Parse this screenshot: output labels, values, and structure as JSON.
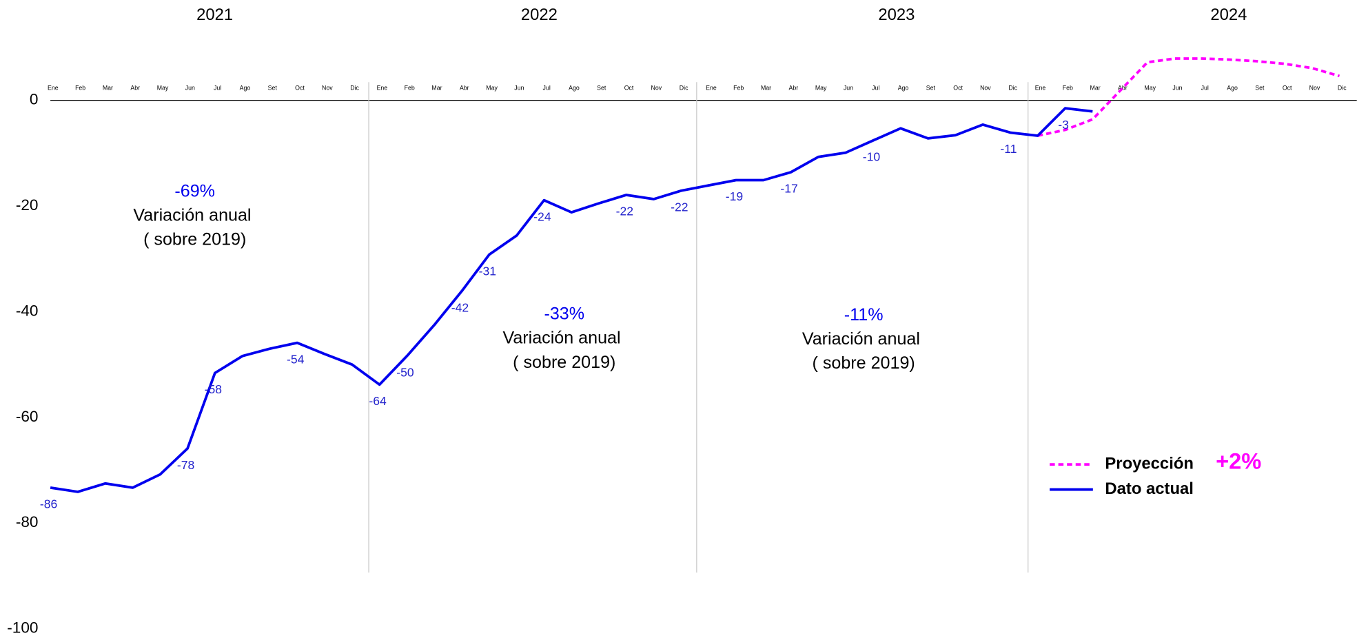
{
  "chart_data": {
    "type": "line",
    "years": [
      "2021",
      "2022",
      "2023",
      "2024"
    ],
    "categories": [
      "Ene",
      "Feb",
      "Mar",
      "Abr",
      "May",
      "Jun",
      "Jul",
      "Ago",
      "Set",
      "Oct",
      "Nov",
      "Dic",
      "Ene",
      "Feb",
      "Mar",
      "Abr",
      "May",
      "Jun",
      "Jul",
      "Ago",
      "Set",
      "Oct",
      "Nov",
      "Dic",
      "Ene",
      "Feb",
      "Mar",
      "Abr",
      "May",
      "Jun",
      "Jul",
      "Ago",
      "Set",
      "Oct",
      "Nov",
      "Dic",
      "Ene",
      "Feb",
      "Mar",
      "Abr",
      "May",
      "Jun",
      "Jul",
      "Ago",
      "Set",
      "Oct",
      "Nov",
      "Dic"
    ],
    "series": [
      {
        "name": "Proyección",
        "color": "#ff00ff",
        "dashed": true,
        "values": [
          null,
          null,
          null,
          null,
          null,
          null,
          null,
          null,
          null,
          null,
          null,
          null,
          null,
          null,
          null,
          null,
          null,
          null,
          null,
          null,
          null,
          null,
          null,
          null,
          null,
          null,
          null,
          null,
          null,
          null,
          null,
          null,
          null,
          null,
          null,
          null,
          -6.7,
          -5.6,
          -3.6,
          1.8,
          7.2,
          7.9,
          7.9,
          7.7,
          7.4,
          6.9,
          6.1,
          4.6
        ]
      },
      {
        "name": "Dato actual",
        "color": "#0000ee",
        "dashed": false,
        "values": [
          -73.3,
          -74.1,
          -72.5,
          -73.3,
          -70.8,
          -65.9,
          -51.6,
          -48.4,
          -47,
          -45.9,
          -48,
          -50,
          -53.8,
          -48.4,
          -42.5,
          -36.1,
          -29.2,
          -25.6,
          -18.9,
          -21.2,
          -19.5,
          -17.9,
          -18.7,
          -17.1,
          -16.1,
          -15.1,
          -15.1,
          -13.6,
          -10.7,
          -9.9,
          -7.6,
          -5.3,
          -7.2,
          -6.6,
          -4.6,
          -6.1,
          -6.7,
          -1.5,
          -2.1,
          null,
          null,
          null,
          null,
          null,
          null,
          null,
          null,
          null
        ],
        "labels": [
          -86,
          null,
          null,
          null,
          null,
          -78,
          -58,
          null,
          null,
          -54,
          null,
          null,
          -64,
          -50,
          null,
          -42,
          -31,
          null,
          -24,
          null,
          null,
          -22,
          null,
          -22,
          null,
          -19,
          null,
          -17,
          null,
          null,
          -10,
          null,
          null,
          null,
          null,
          -11,
          null,
          -3,
          null,
          null,
          null,
          null,
          null,
          null,
          null,
          null,
          null,
          null
        ]
      }
    ],
    "annotations": [
      {
        "value": "-69%",
        "text": "Variación anual",
        "note": "( sobre 2019)"
      },
      {
        "value": "-33%",
        "text": "Variación anual",
        "note": "( sobre 2019)"
      },
      {
        "value": "-11%",
        "text": "Variación anual",
        "note": "( sobre 2019)"
      }
    ],
    "legend_note": "+2%",
    "ylim": [
      -100,
      9
    ],
    "yticks": [
      0,
      -20,
      -40,
      -60,
      -80,
      -100
    ]
  }
}
